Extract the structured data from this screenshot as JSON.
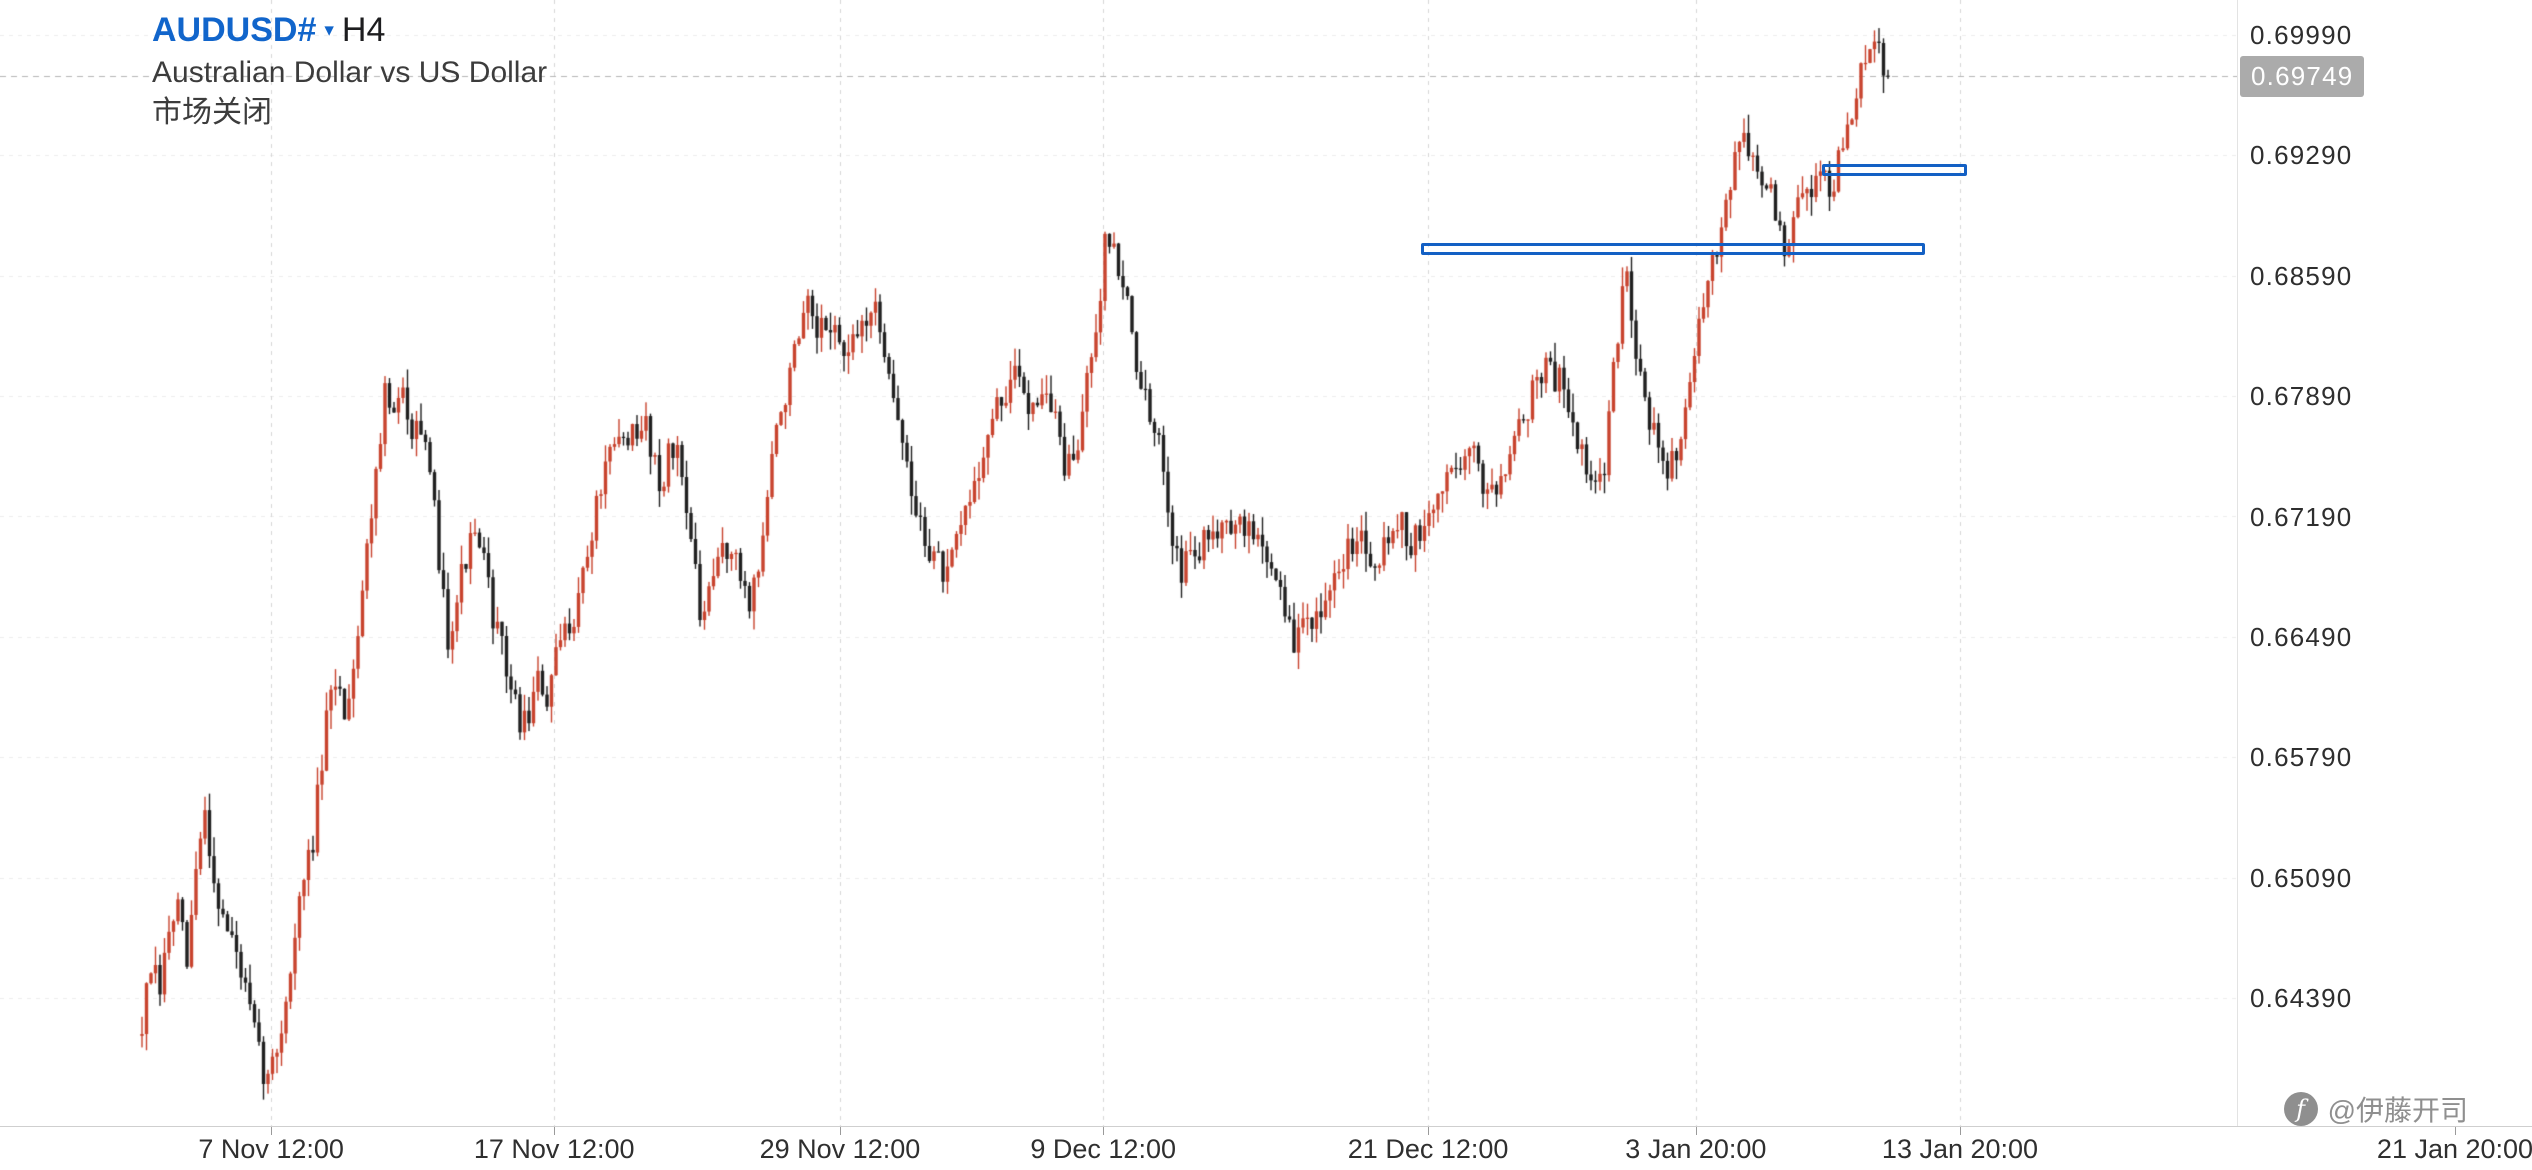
{
  "header": {
    "symbol": "AUDUSD#",
    "dropdown_icon": "▾",
    "timeframe": "H4",
    "description": "Australian Dollar vs US Dollar",
    "market_status": "市场关闭"
  },
  "watermark": {
    "icon": "f",
    "text": "@伊藤开司"
  },
  "chart_data": {
    "type": "candlestick",
    "title": "AUDUSD#, H4 — Australian Dollar vs US Dollar",
    "symbol": "AUDUSD#",
    "timeframe": "H4",
    "market_status": "市场关闭",
    "current_price": 0.69749,
    "current_price_label": "0.69749",
    "y_axis": {
      "side": "right",
      "tick_step": 0.007,
      "ticks": [
        0.6999,
        0.6929,
        0.6859,
        0.6789,
        0.6719,
        0.6649,
        0.6579,
        0.6509,
        0.6439
      ]
    },
    "x_axis": {
      "labels": [
        "7 Nov 12:00",
        "17 Nov 12:00",
        "29 Nov 12:00",
        "9 Dec 12:00",
        "21 Dec 12:00",
        "3 Jan 20:00",
        "13 Jan 20:00",
        "21 Jan 20:00"
      ],
      "label_bar_positions": [
        28.7,
        91.6,
        155.1,
        213.6,
        285.8,
        345.3,
        404,
        514
      ]
    },
    "grid": {
      "style": "dashed",
      "vertical": true,
      "horizontal": true
    },
    "bars_total": 389,
    "price_path_anchors": [
      [
        0,
        0.6423
      ],
      [
        2,
        0.6456
      ],
      [
        4,
        0.6442
      ],
      [
        6,
        0.6478
      ],
      [
        8,
        0.649
      ],
      [
        10,
        0.6458
      ],
      [
        12,
        0.6512
      ],
      [
        14,
        0.6548
      ],
      [
        16,
        0.6508
      ],
      [
        18,
        0.6486
      ],
      [
        21,
        0.6465
      ],
      [
        24,
        0.643
      ],
      [
        26,
        0.6405
      ],
      [
        28,
        0.639
      ],
      [
        30,
        0.641
      ],
      [
        32,
        0.6438
      ],
      [
        35,
        0.6493
      ],
      [
        38,
        0.6532
      ],
      [
        41,
        0.6597
      ],
      [
        43,
        0.6625
      ],
      [
        45,
        0.6607
      ],
      [
        47,
        0.6633
      ],
      [
        50,
        0.67
      ],
      [
        52,
        0.6748
      ],
      [
        54,
        0.679
      ],
      [
        56,
        0.6776
      ],
      [
        58,
        0.6789
      ],
      [
        60,
        0.6773
      ],
      [
        61,
        0.6783
      ],
      [
        63,
        0.6753
      ],
      [
        65,
        0.672
      ],
      [
        68,
        0.665
      ],
      [
        70,
        0.6673
      ],
      [
        72,
        0.6696
      ],
      [
        74,
        0.6706
      ],
      [
        76,
        0.669
      ],
      [
        79,
        0.665
      ],
      [
        81,
        0.6631
      ],
      [
        84,
        0.6598
      ],
      [
        86,
        0.6606
      ],
      [
        88,
        0.6622
      ],
      [
        90,
        0.6612
      ],
      [
        93,
        0.6645
      ],
      [
        96,
        0.6664
      ],
      [
        99,
        0.6696
      ],
      [
        102,
        0.6738
      ],
      [
        105,
        0.6757
      ],
      [
        108,
        0.6769
      ],
      [
        110,
        0.6759
      ],
      [
        112,
        0.6775
      ],
      [
        115,
        0.6738
      ],
      [
        117,
        0.6753
      ],
      [
        119,
        0.6758
      ],
      [
        121,
        0.673
      ],
      [
        124,
        0.6659
      ],
      [
        126,
        0.6669
      ],
      [
        129,
        0.6704
      ],
      [
        131,
        0.6696
      ],
      [
        135,
        0.6671
      ],
      [
        137,
        0.6688
      ],
      [
        140,
        0.6752
      ],
      [
        142,
        0.6781
      ],
      [
        145,
        0.6811
      ],
      [
        148,
        0.6838
      ],
      [
        150,
        0.6821
      ],
      [
        153,
        0.6833
      ],
      [
        155,
        0.6819
      ],
      [
        157,
        0.6809
      ],
      [
        160,
        0.6831
      ],
      [
        162,
        0.6841
      ],
      [
        164,
        0.6828
      ],
      [
        166,
        0.6809
      ],
      [
        168,
        0.6777
      ],
      [
        171,
        0.673
      ],
      [
        174,
        0.6706
      ],
      [
        177,
        0.6692
      ],
      [
        179,
        0.6681
      ],
      [
        181,
        0.6702
      ],
      [
        184,
        0.673
      ],
      [
        187,
        0.6758
      ],
      [
        190,
        0.6781
      ],
      [
        193,
        0.6796
      ],
      [
        195,
        0.6801
      ],
      [
        197,
        0.6785
      ],
      [
        200,
        0.6794
      ],
      [
        203,
        0.6776
      ],
      [
        205,
        0.6749
      ],
      [
        207,
        0.6744
      ],
      [
        209,
        0.6781
      ],
      [
        211,
        0.6819
      ],
      [
        213,
        0.6851
      ],
      [
        214,
        0.689
      ],
      [
        216,
        0.6871
      ],
      [
        218,
        0.6857
      ],
      [
        220,
        0.6824
      ],
      [
        222,
        0.6796
      ],
      [
        224,
        0.6773
      ],
      [
        227,
        0.6749
      ],
      [
        229,
        0.6711
      ],
      [
        231,
        0.6688
      ],
      [
        233,
        0.6696
      ],
      [
        236,
        0.6702
      ],
      [
        238,
        0.6711
      ],
      [
        241,
        0.6723
      ],
      [
        243,
        0.6709
      ],
      [
        246,
        0.6714
      ],
      [
        249,
        0.67
      ],
      [
        251,
        0.6691
      ],
      [
        253,
        0.6679
      ],
      [
        256,
        0.664
      ],
      [
        258,
        0.6659
      ],
      [
        260,
        0.6663
      ],
      [
        262,
        0.6653
      ],
      [
        264,
        0.6671
      ],
      [
        267,
        0.6694
      ],
      [
        270,
        0.6713
      ],
      [
        273,
        0.6696
      ],
      [
        276,
        0.6702
      ],
      [
        279,
        0.6719
      ],
      [
        282,
        0.6703
      ],
      [
        285,
        0.6709
      ],
      [
        288,
        0.6732
      ],
      [
        291,
        0.6746
      ],
      [
        294,
        0.6757
      ],
      [
        296,
        0.6753
      ],
      [
        298,
        0.6739
      ],
      [
        301,
        0.6737
      ],
      [
        304,
        0.6761
      ],
      [
        307,
        0.6776
      ],
      [
        310,
        0.68
      ],
      [
        312,
        0.6807
      ],
      [
        314,
        0.68
      ],
      [
        316,
        0.6796
      ],
      [
        318,
        0.6776
      ],
      [
        321,
        0.6744
      ],
      [
        323,
        0.6732
      ],
      [
        325,
        0.6751
      ],
      [
        327,
        0.6801
      ],
      [
        330,
        0.6869
      ],
      [
        332,
        0.6813
      ],
      [
        334,
        0.6791
      ],
      [
        337,
        0.6753
      ],
      [
        339,
        0.6741
      ],
      [
        341,
        0.6761
      ],
      [
        344,
        0.6796
      ],
      [
        347,
        0.6839
      ],
      [
        349,
        0.6863
      ],
      [
        351,
        0.6894
      ],
      [
        353,
        0.6918
      ],
      [
        355,
        0.6941
      ],
      [
        357,
        0.6932
      ],
      [
        359,
        0.692
      ],
      [
        361,
        0.6913
      ],
      [
        363,
        0.6896
      ],
      [
        365,
        0.6871
      ],
      [
        367,
        0.6889
      ],
      [
        369,
        0.6904
      ],
      [
        371,
        0.6913
      ],
      [
        373,
        0.692
      ],
      [
        375,
        0.691
      ],
      [
        377,
        0.6923
      ],
      [
        379,
        0.6945
      ],
      [
        381,
        0.6967
      ],
      [
        383,
        0.6981
      ],
      [
        385,
        0.6993
      ],
      [
        387,
        0.6979
      ],
      [
        388,
        0.69749
      ]
    ],
    "annotations": [
      {
        "type": "rectangle",
        "bar_start": 284.2,
        "bar_end": 396.2,
        "price_top": 0.6878,
        "price_bottom": 0.6871,
        "color": "#1360c4"
      },
      {
        "type": "rectangle",
        "bar_start": 373.3,
        "bar_end": 405.5,
        "price_top": 0.6924,
        "price_bottom": 0.6917,
        "color": "#1360c4"
      }
    ],
    "colors": {
      "bull": "#c8432e",
      "bear": "#202020",
      "grid_v": "#d6d6d6",
      "grid_h": "#ededed",
      "current_price_line": "#b5b5b5",
      "price_tag_bg": "#ababab",
      "accent_blue": "#1165cb",
      "annotation_blue": "#1360c4"
    },
    "noise": {
      "seed": 7,
      "close_amp": 0.0019,
      "wick_amp": 0.0011
    }
  }
}
